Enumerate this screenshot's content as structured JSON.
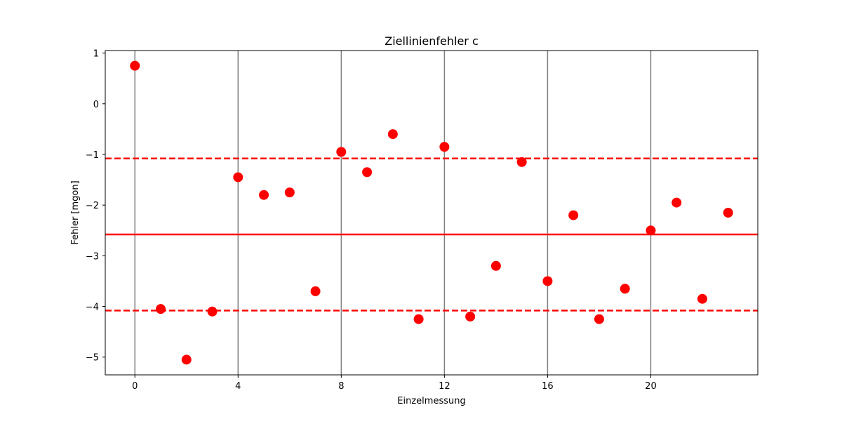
{
  "chart_data": {
    "type": "scatter",
    "title": "Ziellinienfehler c",
    "xlabel": "Einzelmessung",
    "ylabel": "Fehler [mgon]",
    "xlim": [
      -1.15,
      24.15
    ],
    "ylim": [
      -5.35,
      1.05
    ],
    "xticks": [
      0,
      4,
      8,
      12,
      16,
      20
    ],
    "yticks": [
      -5,
      -4,
      -3,
      -2,
      -1,
      0,
      1
    ],
    "vlines": [
      0,
      4,
      8,
      12,
      16,
      20
    ],
    "grid": false,
    "colors": {
      "points": "#ff0000",
      "mean_line": "#ff0000",
      "bound_lines": "#ff0000",
      "vlines": "#808080"
    },
    "x": [
      0,
      1,
      2,
      3,
      4,
      5,
      6,
      7,
      8,
      9,
      10,
      11,
      12,
      13,
      14,
      15,
      16,
      17,
      18,
      19,
      20,
      21,
      22,
      23
    ],
    "y": [
      0.75,
      -4.05,
      -5.05,
      -4.1,
      -1.45,
      -1.8,
      -1.75,
      -3.7,
      -0.95,
      -1.35,
      -0.6,
      -4.25,
      -0.85,
      -4.2,
      -3.2,
      -1.15,
      -3.5,
      -2.2,
      -4.25,
      -3.65,
      -2.5,
      -1.95,
      -3.85,
      -2.15
    ],
    "mean": -2.58,
    "upper_bound": -1.08,
    "lower_bound": -4.08
  }
}
